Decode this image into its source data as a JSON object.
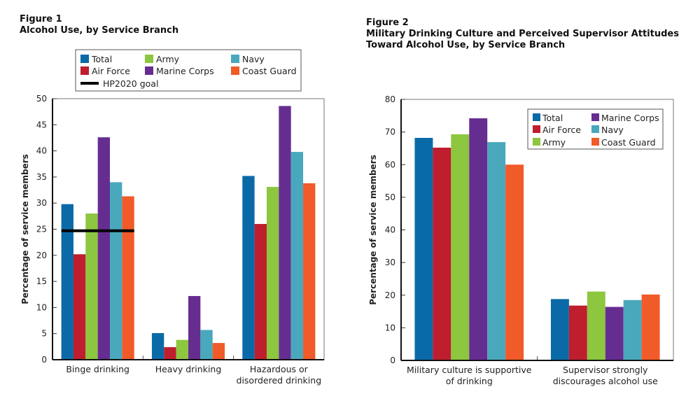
{
  "chart_data": [
    {
      "type": "bar",
      "figure_label": "Figure 1",
      "title": "Alcohol Use, by Service Branch",
      "ylabel": "Percentage of service members",
      "xlabel": "",
      "ylim": [
        0,
        50
      ],
      "yticks": [
        0,
        5,
        10,
        15,
        20,
        25,
        30,
        35,
        40,
        45,
        50
      ],
      "categories": [
        [
          "Binge drinking"
        ],
        [
          "Heavy drinking"
        ],
        [
          "Hazardous or",
          "disordered drinking"
        ]
      ],
      "series": [
        {
          "name": "Total",
          "color": "#0a6aa8",
          "values": [
            29.8,
            5.1,
            35.2
          ]
        },
        {
          "name": "Air Force",
          "color": "#be1e2d",
          "values": [
            20.2,
            2.4,
            26.0
          ]
        },
        {
          "name": "Army",
          "color": "#8dc63f",
          "values": [
            28.0,
            3.8,
            33.1
          ]
        },
        {
          "name": "Marine Corps",
          "color": "#662d91",
          "values": [
            42.6,
            12.2,
            48.6
          ]
        },
        {
          "name": "Navy",
          "color": "#4aa8bd",
          "values": [
            34.0,
            5.7,
            39.8
          ]
        },
        {
          "name": "Coast Guard",
          "color": "#f15a29",
          "values": [
            31.3,
            3.2,
            33.8
          ]
        }
      ],
      "reference_line": {
        "name": "HP2020 goal",
        "value": 24.7,
        "category": "Binge drinking",
        "color": "#000000"
      },
      "legend": {
        "placement": "top",
        "order": [
          "Total",
          "Army",
          "Navy",
          "Air Force",
          "Marine Corps",
          "Coast Guard",
          "HP2020 goal"
        ]
      },
      "grid": false
    },
    {
      "type": "bar",
      "figure_label": "Figure 2",
      "title": "Military Drinking Culture and Perceived Supervisor Attitudes Toward Alcohol Use, by Service Branch",
      "title_lines": [
        "Military Drinking Culture and Perceived Supervisor Attitudes",
        "Toward Alcohol Use, by Service Branch"
      ],
      "ylabel": "Percentage of service members",
      "xlabel": "",
      "ylim": [
        0,
        80
      ],
      "yticks": [
        0,
        10,
        20,
        30,
        40,
        50,
        60,
        70,
        80
      ],
      "categories": [
        [
          "Military culture is supportive",
          "of drinking"
        ],
        [
          "Supervisor strongly",
          "discourages alcohol use"
        ]
      ],
      "series": [
        {
          "name": "Total",
          "color": "#0a6aa8",
          "values": [
            68.2,
            18.8
          ]
        },
        {
          "name": "Air Force",
          "color": "#be1e2d",
          "values": [
            65.2,
            16.8
          ]
        },
        {
          "name": "Army",
          "color": "#8dc63f",
          "values": [
            69.3,
            21.1
          ]
        },
        {
          "name": "Marine Corps",
          "color": "#662d91",
          "values": [
            74.2,
            16.4
          ]
        },
        {
          "name": "Navy",
          "color": "#4aa8bd",
          "values": [
            66.9,
            18.5
          ]
        },
        {
          "name": "Coast Guard",
          "color": "#f15a29",
          "values": [
            60.0,
            20.2
          ]
        }
      ],
      "legend": {
        "placement": "top-right",
        "order": [
          "Total",
          "Marine Corps",
          "Air Force",
          "Navy",
          "Army",
          "Coast Guard"
        ]
      },
      "grid": false
    }
  ]
}
